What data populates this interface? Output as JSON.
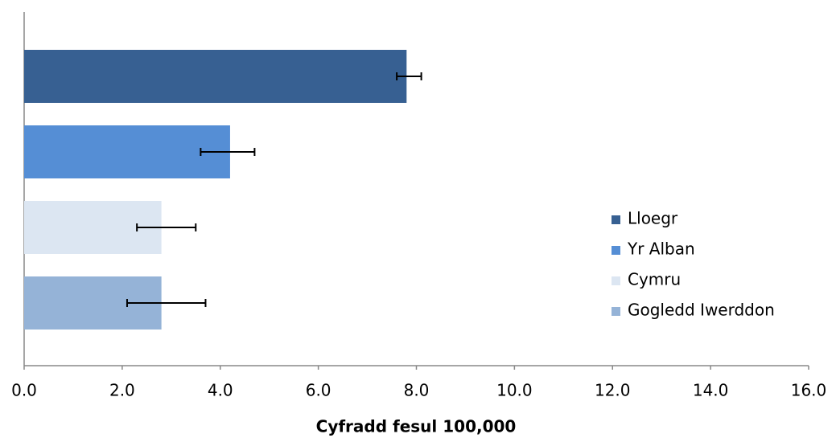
{
  "chart_data": {
    "type": "bar",
    "orientation": "horizontal",
    "xlabel": "Cyfradd fesul 100,000",
    "series": [
      {
        "name": "Lloegr",
        "color": "#376092",
        "values": [
          7.8
        ],
        "lower": [
          7.6
        ],
        "upper": [
          8.1
        ]
      },
      {
        "name": "Yr Alban",
        "color": "#558ed5",
        "values": [
          4.2
        ],
        "lower": [
          3.6
        ],
        "upper": [
          4.7
        ]
      },
      {
        "name": "Cymru",
        "color": "#dce6f2",
        "values": [
          2.8
        ],
        "lower": [
          2.3
        ],
        "upper": [
          3.5
        ]
      },
      {
        "name": "Gogledd Iwerddon",
        "color": "#95b3d7",
        "values": [
          2.8
        ],
        "lower": [
          2.1
        ],
        "upper": [
          3.7
        ]
      }
    ],
    "xlim": [
      0,
      16
    ],
    "xticks": [
      {
        "value": 0,
        "label": "0.0"
      },
      {
        "value": 2,
        "label": "2.0"
      },
      {
        "value": 4,
        "label": "4.0"
      },
      {
        "value": 6,
        "label": "6.0"
      },
      {
        "value": 8,
        "label": "8.0"
      },
      {
        "value": 10,
        "label": "10.0"
      },
      {
        "value": 12,
        "label": "12.0"
      },
      {
        "value": 14,
        "label": "14.0"
      },
      {
        "value": 16,
        "label": "16.0"
      }
    ],
    "grid": false,
    "legend": "right"
  }
}
